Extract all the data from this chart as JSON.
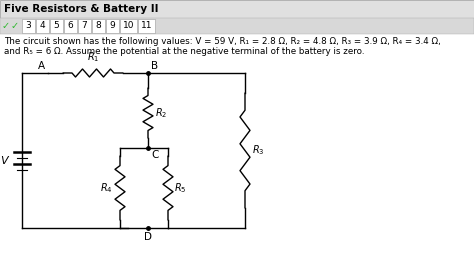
{
  "title": "Five Resistors & Battery II",
  "header_text_line1": "The circuit shown has the following values: V = 59 V, R₁ = 2.8 Ω, R₂ = 4.8 Ω, R₃ = 3.9 Ω, R₄ = 3.4 Ω,",
  "header_text_line2": "and R₅ = 6 Ω. Assume the potential at the negative terminal of the battery is zero.",
  "tab_labels": [
    "3",
    "4",
    "5",
    "6",
    "7",
    "8",
    "9",
    "10",
    "11"
  ],
  "background_color": "#ffffff",
  "header_bg": "#e0e0e0",
  "tab_bg": "#d8d8d8",
  "tab_active_bg": "#ffffff",
  "line_color": "#000000"
}
